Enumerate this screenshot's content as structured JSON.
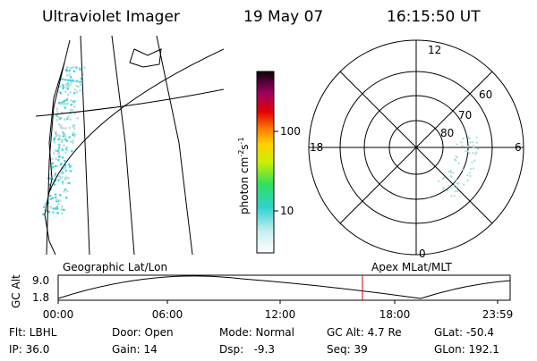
{
  "header": {
    "instrument": "Ultraviolet Imager",
    "date": "19 May 07",
    "time": "16:15:50 UT"
  },
  "colorbar": {
    "ticks": [
      "100",
      "10"
    ],
    "label": {
      "base": "photon cm",
      "exp1": "-2",
      "mid": "s",
      "exp2": "-1"
    }
  },
  "polar": {
    "mlt": [
      "12",
      "18",
      "6",
      "0"
    ],
    "mlat": [
      "60",
      "70",
      "80"
    ]
  },
  "timeline": {
    "left_title": "Geographic Lat/Lon",
    "right_title": "Apex MLat/MLT",
    "ylabel": "GC Alt",
    "yticks": [
      "9.0",
      "1.8"
    ],
    "xticks": [
      "00:00",
      "06:00",
      "12:00",
      "18:00",
      "23:59"
    ]
  },
  "footer": {
    "rows": [
      [
        "Flt: LBHL",
        "Door: Open",
        "Mode: Normal",
        "GC Alt: 4.7 Re",
        "GLat: -50.4"
      ],
      [
        "IP: 36.0",
        "Gain: 14",
        "Dsp:   -9.3",
        "Seq: 39",
        "GLon: 192.1"
      ]
    ]
  }
}
